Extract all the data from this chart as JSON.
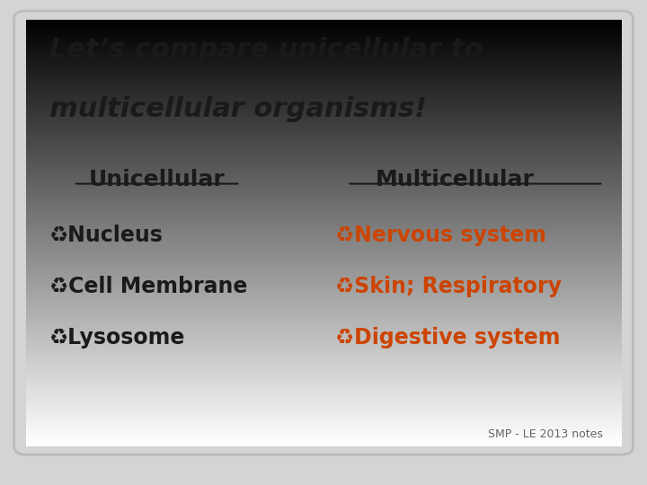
{
  "title_line1": "Let’s compare unicellular to",
  "title_line2": "multicellular organisms!",
  "title_color": "#1a1a1a",
  "title_fontsize": 22,
  "title_fontstyle": "italic",
  "title_fontweight": "bold",
  "bg_outer": "#d4d4d4",
  "header_uni": "Unicellular",
  "header_multi": "Multicellular",
  "header_color": "#1a1a1a",
  "header_fontsize": 18,
  "uni_items": [
    "Nucleus",
    "Cell Membrane",
    "Lysosome"
  ],
  "multi_items": [
    "Nervous system",
    "Skin; Respiratory",
    "Digestive system"
  ],
  "item_color_uni": "#1a1a1a",
  "item_color_multi": "#cc4400",
  "item_fontsize": 17,
  "footer": "SMP - LE 2013 notes",
  "footer_color": "#666666",
  "footer_fontsize": 9
}
